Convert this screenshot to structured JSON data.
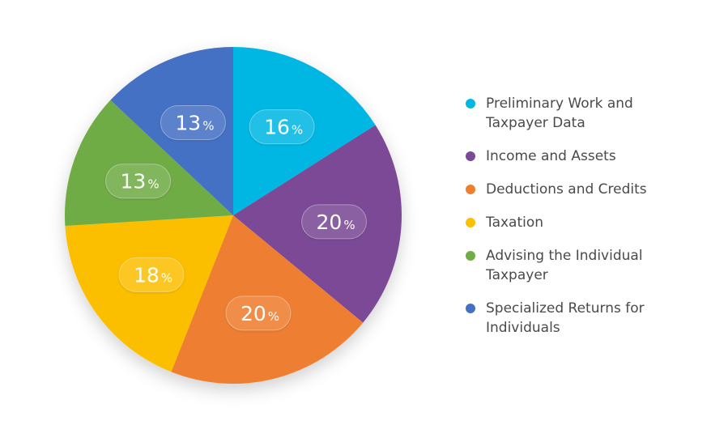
{
  "chart_data": {
    "type": "pie",
    "categories": [
      "Preliminary Work and Taxpayer Data",
      "Income and Assets",
      "Deductions and Credits",
      "Taxation",
      "Advising the Individual Taxpayer",
      "Specialized Returns for Individuals"
    ],
    "values": [
      16,
      20,
      20,
      18,
      13,
      13
    ],
    "value_labels": [
      "16",
      "20",
      "20",
      "18",
      "13",
      "13"
    ],
    "unit_suffix": "%",
    "colors": [
      "#03b7e3",
      "#7b4a97",
      "#ee7f31",
      "#fcbf02",
      "#70ac45",
      "#4571c5"
    ],
    "start_angle_deg": 0,
    "direction": "clockwise",
    "legend_position": "right"
  },
  "legend": {
    "items": [
      {
        "label_lines": [
          "Preliminary Work and",
          "Taxpayer Data"
        ],
        "color": "#03b7e3"
      },
      {
        "label_lines": [
          "Income and Assets"
        ],
        "color": "#7b4a97"
      },
      {
        "label_lines": [
          "Deductions and Credits"
        ],
        "color": "#ee7f31"
      },
      {
        "label_lines": [
          "Taxation"
        ],
        "color": "#fcbf02"
      },
      {
        "label_lines": [
          "Advising the Individual",
          "Taxpayer"
        ],
        "color": "#70ac45"
      },
      {
        "label_lines": [
          "Specialized Returns for",
          "Individuals"
        ],
        "color": "#4571c5"
      }
    ]
  }
}
